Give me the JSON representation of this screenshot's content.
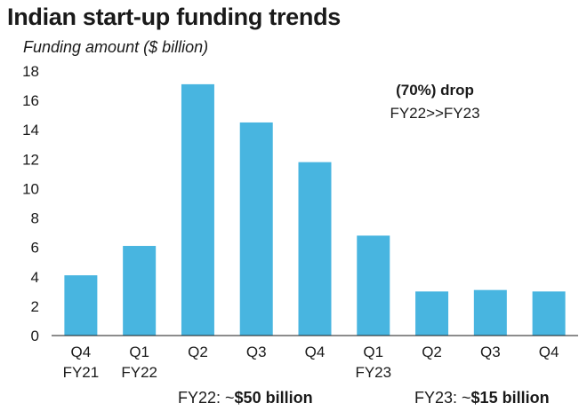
{
  "chart_data": {
    "type": "bar",
    "title": "Indian start-up funding trends",
    "ylabel": "Funding amount ($ billion)",
    "xlabel": "",
    "ylim": [
      0,
      18
    ],
    "yticks": [
      0,
      2,
      4,
      6,
      8,
      10,
      12,
      14,
      16,
      18
    ],
    "grid": false,
    "categories": [
      [
        "Q4",
        "FY21"
      ],
      [
        "Q1",
        "FY22"
      ],
      [
        "Q2",
        ""
      ],
      [
        "Q3",
        ""
      ],
      [
        "Q4",
        ""
      ],
      [
        "Q1",
        "FY23"
      ],
      [
        "Q2",
        ""
      ],
      [
        "Q3",
        ""
      ],
      [
        "Q4",
        ""
      ]
    ],
    "values": [
      4.1,
      6.1,
      17.1,
      14.5,
      11.8,
      6.8,
      3.0,
      3.1,
      3.0
    ],
    "bar_color": "#48b5e0",
    "annotations": {
      "drop_bold": "(70%) drop",
      "drop_period": "FY22>>FY23"
    },
    "footer": {
      "fy22_prefix": "FY22: ~",
      "fy22_value": "$50 billion",
      "fy23_prefix": "FY23: ~",
      "fy23_value": "$15 billion"
    }
  }
}
